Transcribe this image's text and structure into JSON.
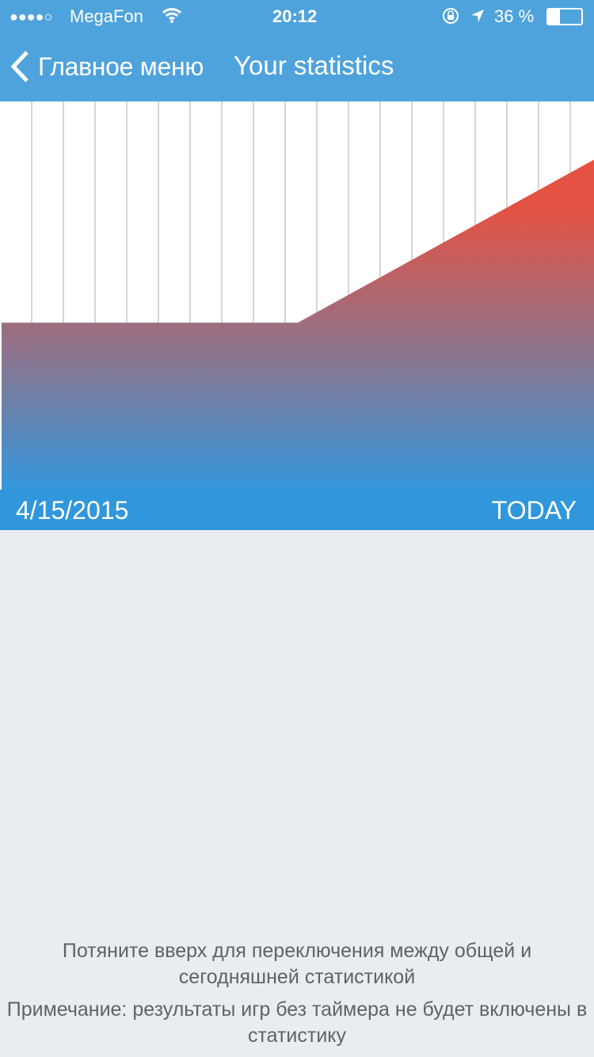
{
  "status_bar": {
    "signal": "●●●●○",
    "carrier": "MegaFon",
    "time": "20:12",
    "battery": "36 %",
    "icons": [
      "wifi-icon",
      "rotation-lock-icon",
      "location-arrow-icon",
      "battery-icon"
    ],
    "battery_level": 0.36
  },
  "nav": {
    "back_label": "Главное меню",
    "title": "Your statistics"
  },
  "chart_data": {
    "type": "area",
    "x_start_label": "4/15/2015",
    "x_end_label": "TODAY",
    "values": [
      0.43,
      0.43,
      0.85
    ],
    "x": [
      0,
      0.5,
      1
    ],
    "grid": "vertical",
    "gradient_colors": [
      "#e35243",
      "#8a7590",
      "#3597dc"
    ]
  },
  "footer": {
    "start_date": "4/15/2015",
    "end_label": "TODAY"
  },
  "notes": [
    "Потяните вверх для переключения между общей и сегодняшней статистикой",
    "Примечание: результаты игр без таймера не будет включены в статистику"
  ],
  "colors": {
    "header": "#4fa3dc",
    "footer": "#3097dc",
    "background": "#e9edf0"
  }
}
